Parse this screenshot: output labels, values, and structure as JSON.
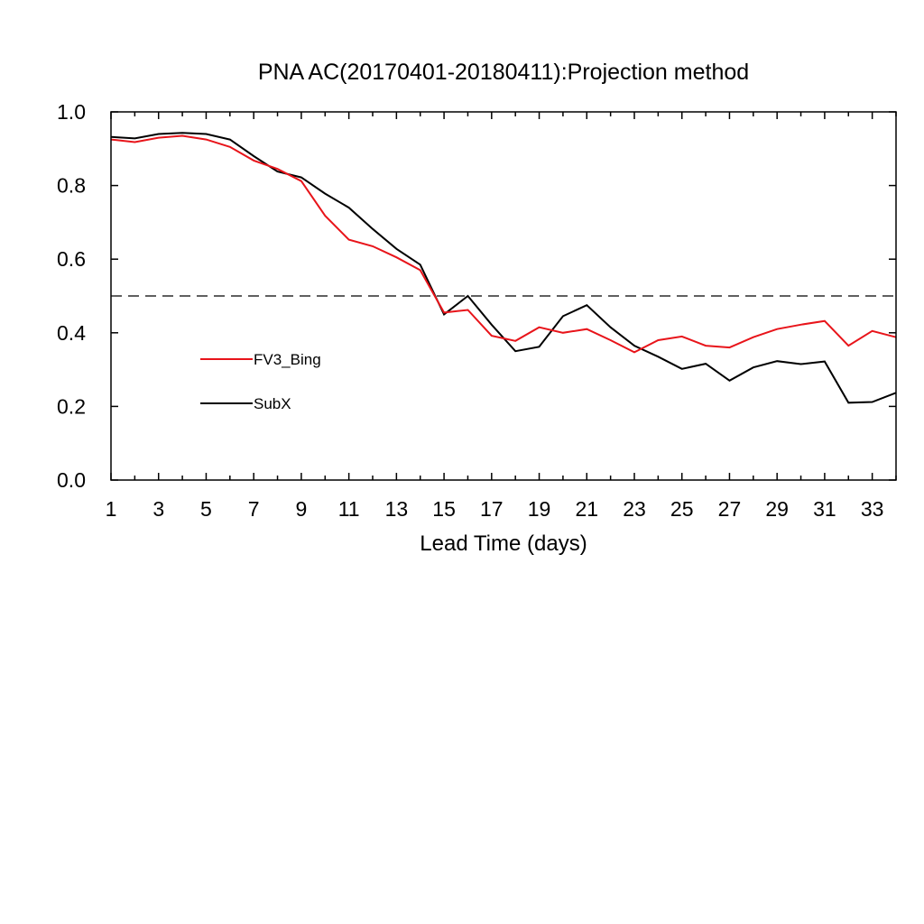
{
  "chart_data": {
    "type": "line",
    "title": "PNA AC(20170401-20180411):Projection method",
    "xlabel": "Lead Time (days)",
    "ylabel": "",
    "xlim": [
      1,
      34
    ],
    "ylim": [
      0.0,
      1.0
    ],
    "xticks": [
      1,
      3,
      5,
      7,
      9,
      11,
      13,
      15,
      17,
      19,
      21,
      23,
      25,
      27,
      29,
      31,
      33
    ],
    "yticks": [
      "0.0",
      "0.2",
      "0.4",
      "0.6",
      "0.8",
      "1.0"
    ],
    "reference_line": {
      "y": 0.5,
      "style": "dashed"
    },
    "legend_placement": "lower-left",
    "x": [
      1,
      2,
      3,
      4,
      5,
      6,
      7,
      8,
      9,
      10,
      11,
      12,
      13,
      14,
      15,
      16,
      17,
      18,
      19,
      20,
      21,
      22,
      23,
      24,
      25,
      26,
      27,
      28,
      29,
      30,
      31,
      32,
      33,
      34
    ],
    "series": [
      {
        "name": "FV3_Bing",
        "color": "#e8141a",
        "values": [
          0.925,
          0.918,
          0.93,
          0.935,
          0.925,
          0.905,
          0.868,
          0.845,
          0.812,
          0.718,
          0.653,
          0.635,
          0.605,
          0.57,
          0.455,
          0.462,
          0.392,
          0.378,
          0.415,
          0.4,
          0.41,
          0.38,
          0.347,
          0.38,
          0.39,
          0.365,
          0.36,
          0.388,
          0.41,
          0.422,
          0.432,
          0.365,
          0.405,
          0.388
        ]
      },
      {
        "name": "SubX",
        "color": "#000000",
        "values": [
          0.932,
          0.928,
          0.94,
          0.943,
          0.94,
          0.925,
          0.88,
          0.838,
          0.822,
          0.778,
          0.74,
          0.682,
          0.628,
          0.585,
          0.45,
          0.5,
          0.422,
          0.35,
          0.362,
          0.445,
          0.475,
          0.415,
          0.365,
          0.335,
          0.302,
          0.316,
          0.27,
          0.306,
          0.323,
          0.315,
          0.322,
          0.21,
          0.212,
          0.237
        ]
      }
    ]
  }
}
